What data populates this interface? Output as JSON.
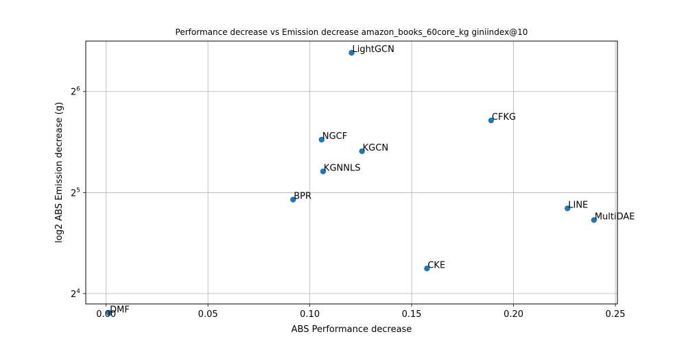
{
  "chart_data": {
    "type": "scatter",
    "title": "Performance decrease vs Emission decrease amazon_books_60core_kg giniindex@10",
    "xlabel": "ABS Performance decrease",
    "ylabel": "log2 ABS Emission decrease (g)",
    "x_scale": "linear",
    "y_scale": "log2",
    "xlim": [
      -0.01,
      0.251
    ],
    "ylim": [
      14.9,
      90.5
    ],
    "grid": true,
    "x_ticks": [
      0.0,
      0.05,
      0.1,
      0.15,
      0.2,
      0.25
    ],
    "x_tick_labels": [
      "0.00",
      "0.05",
      "0.10",
      "0.15",
      "0.20",
      "0.25"
    ],
    "y_ticks": [
      16,
      32,
      64
    ],
    "y_tick_labels": [
      {
        "base": "2",
        "exp": "4"
      },
      {
        "base": "2",
        "exp": "5"
      },
      {
        "base": "2",
        "exp": "6"
      }
    ],
    "marker_color": "#1f77b4",
    "points": [
      {
        "label": "LightGCN",
        "x": 0.1205,
        "y": 83.5
      },
      {
        "label": "CFKG",
        "x": 0.189,
        "y": 52.5
      },
      {
        "label": "NGCF",
        "x": 0.1058,
        "y": 46.0
      },
      {
        "label": "KGCN",
        "x": 0.1256,
        "y": 42.5
      },
      {
        "label": "KGNNLS",
        "x": 0.1065,
        "y": 37.0
      },
      {
        "label": "BPR",
        "x": 0.0918,
        "y": 30.5
      },
      {
        "label": "LINE",
        "x": 0.2265,
        "y": 28.7
      },
      {
        "label": "MultiDAE",
        "x": 0.2395,
        "y": 26.5
      },
      {
        "label": "CKE",
        "x": 0.1575,
        "y": 19.0
      },
      {
        "label": "DMF",
        "x": 0.0015,
        "y": 14.0
      }
    ]
  }
}
